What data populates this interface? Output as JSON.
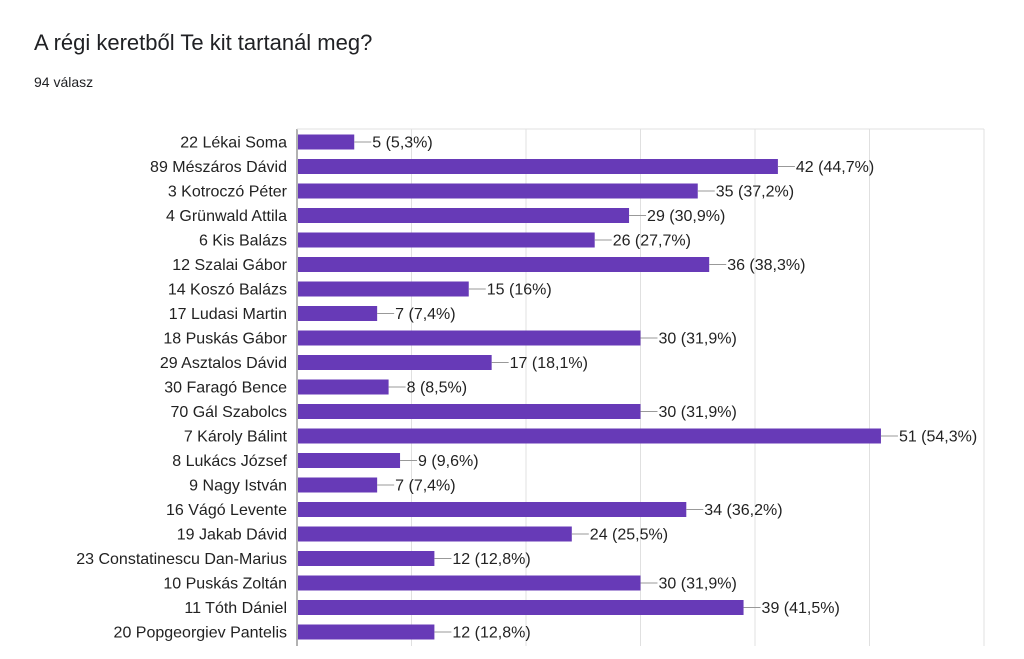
{
  "question": {
    "title": "A régi keretből Te kit tartanál meg?",
    "responses": "94 válasz"
  },
  "colors": {
    "bar": "#673ab7",
    "grid": "#e0e0e0",
    "axis": "#666666",
    "text": "#222222"
  },
  "chart_data": {
    "type": "bar",
    "orientation": "horizontal",
    "title": "A régi keretből Te kit tartanál meg?",
    "categories": [
      "22 Lékai Soma",
      "89 Mészáros Dávid",
      "3 Kotroczó Péter",
      "4 Grünwald Attila",
      "6 Kis Balázs",
      "12 Szalai Gábor",
      "14 Koszó Balázs",
      "17 Ludasi Martin",
      "18 Puskás Gábor",
      "29 Asztalos Dávid",
      "30 Faragó Bence",
      "70 Gál Szabolcs",
      "7 Károly Bálint",
      "8 Lukács József",
      "9 Nagy István",
      "16 Vágó Levente",
      "19 Jakab Dávid",
      "23 Constatinescu Dan-Marius",
      "10 Puskás Zoltán",
      "11 Tóth Dániel",
      "20 Popgeorgiev Pantelis"
    ],
    "values": [
      5,
      42,
      35,
      29,
      26,
      36,
      15,
      7,
      30,
      17,
      8,
      30,
      51,
      9,
      7,
      34,
      24,
      12,
      30,
      39,
      12
    ],
    "labels": [
      "5 (5,3%)",
      "42 (44,7%)",
      "35 (37,2%)",
      "29 (30,9%)",
      "26 (27,7%)",
      "36 (38,3%)",
      "15 (16%)",
      "7 (7,4%)",
      "30 (31,9%)",
      "17 (18,1%)",
      "8 (8,5%)",
      "30 (31,9%)",
      "51 (54,3%)",
      "9 (9,6%)",
      "7 (7,4%)",
      "34 (36,2%)",
      "24 (25,5%)",
      "12 (12,8%)",
      "30 (31,9%)",
      "39 (41,5%)",
      "12 (12,8%)"
    ],
    "xlim": [
      0,
      60
    ],
    "grid": true,
    "legend": "none"
  }
}
